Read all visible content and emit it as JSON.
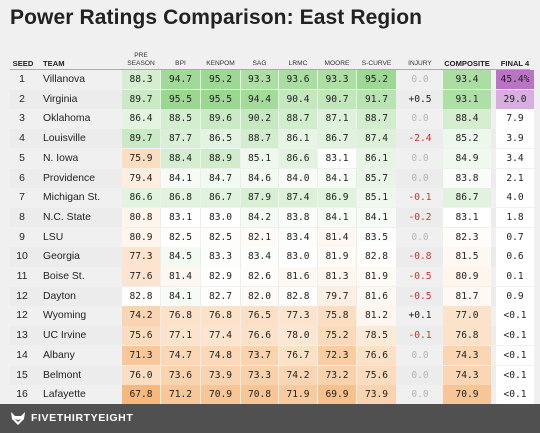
{
  "title": "Power Ratings Comparison: East Region",
  "headers": {
    "seed": "SEED",
    "team": "TEAM",
    "preseason": "PRE SEASON",
    "bpi": "BPI",
    "kenpom": "KENPOM",
    "sag": "SAG",
    "lrmc": "LRMC",
    "moore": "MOORE",
    "scurve": "S-CURVE",
    "injury": "INJURY",
    "composite": "COMPOSITE",
    "final4": "FINAL 4"
  },
  "rows": [
    {
      "seed": "1",
      "team": "Villanova",
      "pre": "88.3",
      "bpi": "94.7",
      "kenpom": "95.2",
      "sag": "93.3",
      "lrmc": "93.6",
      "moore": "93.3",
      "scurve": "95.2",
      "injury": "0.0",
      "composite": "93.4",
      "final4": "45.4%"
    },
    {
      "seed": "2",
      "team": "Virginia",
      "pre": "89.7",
      "bpi": "95.5",
      "kenpom": "95.5",
      "sag": "94.4",
      "lrmc": "90.4",
      "moore": "90.7",
      "scurve": "91.7",
      "injury": "+0.5",
      "composite": "93.1",
      "final4": "29.0"
    },
    {
      "seed": "3",
      "team": "Oklahoma",
      "pre": "86.4",
      "bpi": "88.5",
      "kenpom": "89.6",
      "sag": "90.2",
      "lrmc": "88.7",
      "moore": "87.1",
      "scurve": "88.7",
      "injury": "0.0",
      "composite": "88.4",
      "final4": "7.9"
    },
    {
      "seed": "4",
      "team": "Louisville",
      "pre": "89.7",
      "bpi": "87.7",
      "kenpom": "86.5",
      "sag": "88.7",
      "lrmc": "86.1",
      "moore": "86.7",
      "scurve": "87.4",
      "injury": "-2.4",
      "composite": "85.2",
      "final4": "3.9"
    },
    {
      "seed": "5",
      "team": "N. Iowa",
      "pre": "75.9",
      "bpi": "88.4",
      "kenpom": "88.9",
      "sag": "85.1",
      "lrmc": "86.6",
      "moore": "83.1",
      "scurve": "86.1",
      "injury": "0.0",
      "composite": "84.9",
      "final4": "3.4"
    },
    {
      "seed": "6",
      "team": "Providence",
      "pre": "79.4",
      "bpi": "84.1",
      "kenpom": "84.7",
      "sag": "84.6",
      "lrmc": "84.0",
      "moore": "84.1",
      "scurve": "85.7",
      "injury": "0.0",
      "composite": "83.8",
      "final4": "2.1"
    },
    {
      "seed": "7",
      "team": "Michigan St.",
      "pre": "86.6",
      "bpi": "86.8",
      "kenpom": "86.7",
      "sag": "87.9",
      "lrmc": "87.4",
      "moore": "86.9",
      "scurve": "85.1",
      "injury": "-0.1",
      "composite": "86.7",
      "final4": "4.0"
    },
    {
      "seed": "8",
      "team": "N.C. State",
      "pre": "80.8",
      "bpi": "83.1",
      "kenpom": "83.0",
      "sag": "84.2",
      "lrmc": "83.8",
      "moore": "84.1",
      "scurve": "84.1",
      "injury": "-0.2",
      "composite": "83.1",
      "final4": "1.8"
    },
    {
      "seed": "9",
      "team": "LSU",
      "pre": "80.9",
      "bpi": "82.5",
      "kenpom": "82.5",
      "sag": "82.1",
      "lrmc": "83.4",
      "moore": "81.4",
      "scurve": "83.5",
      "injury": "0.0",
      "composite": "82.3",
      "final4": "0.7"
    },
    {
      "seed": "10",
      "team": "Georgia",
      "pre": "77.3",
      "bpi": "84.5",
      "kenpom": "83.3",
      "sag": "83.4",
      "lrmc": "83.0",
      "moore": "81.9",
      "scurve": "82.8",
      "injury": "-0.8",
      "composite": "81.5",
      "final4": "0.6"
    },
    {
      "seed": "11",
      "team": "Boise St.",
      "pre": "77.6",
      "bpi": "81.4",
      "kenpom": "82.9",
      "sag": "82.6",
      "lrmc": "81.6",
      "moore": "81.3",
      "scurve": "81.9",
      "injury": "-0.5",
      "composite": "80.9",
      "final4": "0.1"
    },
    {
      "seed": "12",
      "team": "Dayton",
      "pre": "82.8",
      "bpi": "84.1",
      "kenpom": "82.7",
      "sag": "82.0",
      "lrmc": "82.8",
      "moore": "79.7",
      "scurve": "81.6",
      "injury": "-0.5",
      "composite": "81.7",
      "final4": "0.9"
    },
    {
      "seed": "12",
      "team": "Wyoming",
      "pre": "74.2",
      "bpi": "76.8",
      "kenpom": "76.8",
      "sag": "76.5",
      "lrmc": "77.3",
      "moore": "75.8",
      "scurve": "81.2",
      "injury": "+0.1",
      "composite": "77.0",
      "final4": "<0.1"
    },
    {
      "seed": "13",
      "team": "UC Irvine",
      "pre": "75.6",
      "bpi": "77.1",
      "kenpom": "77.4",
      "sag": "76.6",
      "lrmc": "78.0",
      "moore": "75.2",
      "scurve": "78.5",
      "injury": "-0.1",
      "composite": "76.8",
      "final4": "<0.1"
    },
    {
      "seed": "14",
      "team": "Albany",
      "pre": "71.3",
      "bpi": "74.7",
      "kenpom": "74.8",
      "sag": "73.7",
      "lrmc": "76.7",
      "moore": "72.3",
      "scurve": "76.6",
      "injury": "0.0",
      "composite": "74.3",
      "final4": "<0.1"
    },
    {
      "seed": "15",
      "team": "Belmont",
      "pre": "76.0",
      "bpi": "73.6",
      "kenpom": "73.9",
      "sag": "73.3",
      "lrmc": "74.2",
      "moore": "73.2",
      "scurve": "75.6",
      "injury": "0.0",
      "composite": "74.3",
      "final4": "<0.1"
    },
    {
      "seed": "16",
      "team": "Lafayette",
      "pre": "67.8",
      "bpi": "71.2",
      "kenpom": "70.9",
      "sag": "70.8",
      "lrmc": "71.9",
      "moore": "69.9",
      "scurve": "73.9",
      "injury": "0.0",
      "composite": "70.9",
      "final4": "<0.1"
    }
  ],
  "footer": {
    "brand": "FIVETHIRTYEIGHT",
    "icon": "fox-icon"
  },
  "colors": {
    "green_dark": "#a9dca0",
    "orange_dark": "#f6c08c",
    "purple_dark": "#bb73c6",
    "purple_light": "#d8aee0"
  }
}
